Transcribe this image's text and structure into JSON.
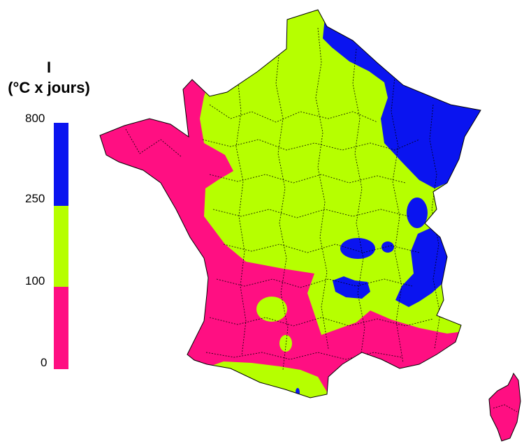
{
  "legend": {
    "title_line1": "I",
    "title_line2": "(°C x jours)",
    "ticks": [
      "800",
      "250",
      "100",
      "0"
    ],
    "classes": [
      {
        "range": "250–800",
        "color": "#0a14f0"
      },
      {
        "range": "100–250",
        "color": "#b6ff00"
      },
      {
        "range": "0–100",
        "color": "#ff0f82"
      }
    ]
  },
  "map": {
    "regions": [
      "France",
      "Corse"
    ]
  }
}
